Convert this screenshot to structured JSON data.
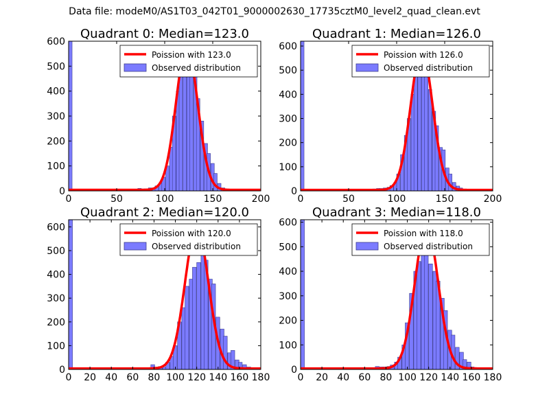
{
  "figure_title": "Data file: modeM0/AS1T03_042T01_9000002630_17735cztM0_level2_quad_clean.evt",
  "colors": {
    "bars": "#7b7bff",
    "bar_edge": "#3c3c8c",
    "fit": "#ff0000"
  },
  "chart_data": [
    {
      "type": "bar",
      "title": "Quadrant 0: Median=123.0",
      "xlim": [
        0,
        200
      ],
      "ylim": [
        0,
        600
      ],
      "xticks": [
        0,
        50,
        100,
        150,
        200
      ],
      "yticks": [
        0,
        100,
        200,
        300,
        400,
        500,
        600
      ],
      "legend": [
        "Poission with 123.0",
        "Observed distribution"
      ],
      "legend_location": "top-right",
      "bin_width": 3.6,
      "bins": [
        [
          0,
          620
        ],
        [
          72,
          10
        ],
        [
          76,
          8
        ],
        [
          79,
          8
        ],
        [
          83,
          12
        ],
        [
          87,
          12
        ],
        [
          90,
          20
        ],
        [
          94,
          30
        ],
        [
          97,
          55
        ],
        [
          101,
          100
        ],
        [
          105,
          175
        ],
        [
          108,
          300
        ],
        [
          112,
          400
        ],
        [
          115,
          510
        ],
        [
          119,
          520
        ],
        [
          123,
          560
        ],
        [
          126,
          510
        ],
        [
          130,
          490
        ],
        [
          133,
          370
        ],
        [
          137,
          280
        ],
        [
          141,
          190
        ],
        [
          144,
          150
        ],
        [
          148,
          110
        ],
        [
          151,
          70
        ],
        [
          155,
          30
        ],
        [
          159,
          12
        ],
        [
          162,
          6
        ],
        [
          166,
          4
        ],
        [
          170,
          3
        ],
        [
          180,
          2
        ]
      ],
      "fit": {
        "mean": 123,
        "peak": 575,
        "sigma": 11.3
      }
    },
    {
      "type": "bar",
      "title": "Quadrant 1: Median=126.0",
      "xlim": [
        0,
        200
      ],
      "ylim": [
        0,
        620
      ],
      "xticks": [
        0,
        50,
        100,
        150,
        200
      ],
      "yticks": [
        0,
        100,
        200,
        300,
        400,
        500,
        600
      ],
      "legend": [
        "Poission with 126.0",
        "Observed distribution"
      ],
      "legend_location": "top-right",
      "bin_width": 3.6,
      "bins": [
        [
          0,
          620
        ],
        [
          75,
          8
        ],
        [
          79,
          10
        ],
        [
          82,
          10
        ],
        [
          86,
          12
        ],
        [
          90,
          15
        ],
        [
          93,
          22
        ],
        [
          97,
          35
        ],
        [
          100,
          70
        ],
        [
          104,
          150
        ],
        [
          108,
          230
        ],
        [
          111,
          300
        ],
        [
          115,
          400
        ],
        [
          118,
          480
        ],
        [
          122,
          530
        ],
        [
          126,
          555
        ],
        [
          129,
          500
        ],
        [
          133,
          420
        ],
        [
          137,
          330
        ],
        [
          140,
          270
        ],
        [
          144,
          180
        ],
        [
          147,
          170
        ],
        [
          151,
          95
        ],
        [
          154,
          70
        ],
        [
          158,
          35
        ],
        [
          162,
          20
        ],
        [
          165,
          12
        ],
        [
          169,
          4
        ]
      ],
      "fit": {
        "mean": 126,
        "peak": 580,
        "sigma": 11.4
      }
    },
    {
      "type": "bar",
      "title": "Quadrant 2: Median=120.0",
      "xlim": [
        0,
        180
      ],
      "ylim": [
        0,
        630
      ],
      "xticks": [
        0,
        20,
        40,
        60,
        80,
        100,
        120,
        140,
        160,
        180
      ],
      "yticks": [
        0,
        100,
        200,
        300,
        400,
        500,
        600
      ],
      "legend": [
        "Poission with 120.0",
        "Observed distribution"
      ],
      "legend_location": "top-right",
      "bin_width": 3.6,
      "bins": [
        [
          0,
          630
        ],
        [
          77,
          20
        ],
        [
          81,
          10
        ],
        [
          84,
          12
        ],
        [
          88,
          10
        ],
        [
          91,
          30
        ],
        [
          95,
          55
        ],
        [
          98,
          100
        ],
        [
          102,
          200
        ],
        [
          106,
          260
        ],
        [
          109,
          350
        ],
        [
          113,
          380
        ],
        [
          116,
          430
        ],
        [
          120,
          450
        ],
        [
          124,
          600
        ],
        [
          127,
          460
        ],
        [
          131,
          380
        ],
        [
          134,
          360
        ],
        [
          138,
          220
        ],
        [
          142,
          170
        ],
        [
          145,
          140
        ],
        [
          149,
          70
        ],
        [
          152,
          80
        ],
        [
          156,
          40
        ],
        [
          159,
          30
        ],
        [
          163,
          20
        ],
        [
          167,
          10
        ]
      ],
      "fit": {
        "mean": 120,
        "peak": 595,
        "sigma": 11.0
      }
    },
    {
      "type": "bar",
      "title": "Quadrant 3: Median=118.0",
      "xlim": [
        0,
        180
      ],
      "ylim": [
        0,
        610
      ],
      "xticks": [
        0,
        20,
        40,
        60,
        80,
        100,
        120,
        140,
        160,
        180
      ],
      "yticks": [
        0,
        100,
        200,
        300,
        400,
        500,
        600
      ],
      "legend": [
        "Poission with 118.0",
        "Observed distribution"
      ],
      "legend_location": "top-right",
      "bin_width": 3.6,
      "bins": [
        [
          0,
          610
        ],
        [
          70,
          12
        ],
        [
          74,
          10
        ],
        [
          77,
          10
        ],
        [
          81,
          12
        ],
        [
          84,
          18
        ],
        [
          88,
          30
        ],
        [
          91,
          50
        ],
        [
          95,
          100
        ],
        [
          98,
          190
        ],
        [
          102,
          310
        ],
        [
          106,
          400
        ],
        [
          109,
          440
        ],
        [
          113,
          560
        ],
        [
          116,
          540
        ],
        [
          120,
          430
        ],
        [
          124,
          400
        ],
        [
          127,
          360
        ],
        [
          131,
          290
        ],
        [
          134,
          240
        ],
        [
          138,
          160
        ],
        [
          141,
          140
        ],
        [
          145,
          90
        ],
        [
          149,
          70
        ],
        [
          152,
          40
        ],
        [
          156,
          30
        ],
        [
          159,
          10
        ]
      ],
      "fit": {
        "mean": 118,
        "peak": 580,
        "sigma": 10.9
      }
    }
  ]
}
